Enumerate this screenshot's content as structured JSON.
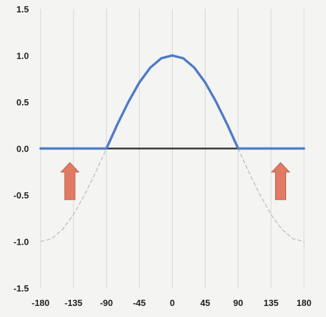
{
  "chart_data": {
    "type": "line",
    "title": "",
    "xlabel": "",
    "ylabel": "",
    "xlim": [
      -180,
      180
    ],
    "ylim": [
      -1.5,
      1.5
    ],
    "x_ticks": [
      -180,
      -135,
      -90,
      -45,
      0,
      45,
      90,
      135,
      180
    ],
    "x_tick_labels": [
      "-180",
      "-135",
      "-90",
      "-45",
      "0",
      "45",
      "90",
      "135",
      "180"
    ],
    "y_ticks": [
      1.5,
      1.0,
      0.5,
      0.0,
      -0.5,
      -1.0,
      -1.5
    ],
    "y_tick_labels": [
      "1.5",
      "1.0",
      "0.5",
      "0.0",
      "-0.5",
      "-1.0",
      "-1.5"
    ],
    "grid": "vertical",
    "series": [
      {
        "style": "solid",
        "color": "#4f7bc8",
        "description_function": "max(0, cos(x))",
        "x": [
          -180,
          -90,
          -75,
          -60,
          -45,
          -30,
          -15,
          0,
          15,
          30,
          45,
          60,
          75,
          90,
          180
        ],
        "y": [
          0,
          0,
          0.26,
          0.5,
          0.71,
          0.87,
          0.97,
          1.0,
          0.97,
          0.87,
          0.71,
          0.5,
          0.26,
          0,
          0
        ]
      },
      {
        "style": "dashed",
        "color": "#bdbdbd",
        "x": [
          -180,
          -165,
          -150,
          -135,
          -120,
          -105,
          -90
        ],
        "y": [
          -1.0,
          -0.97,
          -0.87,
          -0.71,
          -0.5,
          -0.26,
          0
        ]
      },
      {
        "style": "dashed",
        "color": "#bdbdbd",
        "x": [
          90,
          105,
          120,
          135,
          150,
          165,
          180
        ],
        "y": [
          0,
          -0.26,
          -0.5,
          -0.71,
          -0.87,
          -0.97,
          -1.0
        ]
      },
      {
        "style": "solid",
        "color": "#333333",
        "x": [
          -90,
          90
        ],
        "y": [
          0,
          0
        ]
      }
    ],
    "annotations": [
      {
        "type": "arrow-up",
        "x": -140,
        "y_from": -0.55,
        "y_to": -0.15,
        "color": "#e07a63"
      },
      {
        "type": "arrow-up",
        "x": 148,
        "y_from": -0.55,
        "y_to": -0.15,
        "color": "#e07a63"
      }
    ]
  }
}
